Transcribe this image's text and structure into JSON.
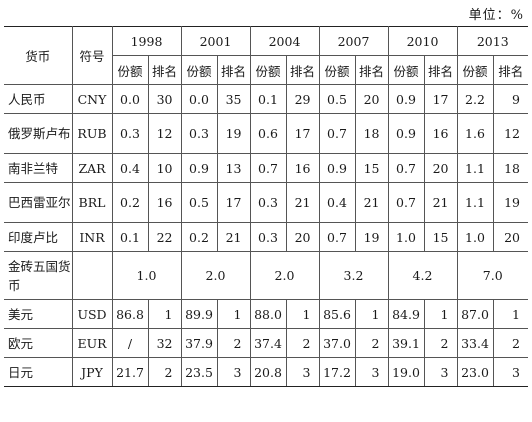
{
  "unit_label": "单位：%",
  "headers": {
    "currency": "货币",
    "code": "符号",
    "years": [
      "1998",
      "2001",
      "2004",
      "2007",
      "2010",
      "2013"
    ],
    "share": "份额",
    "rank": "排名"
  },
  "rows": [
    {
      "name": "人民币",
      "code": "CNY",
      "values": [
        [
          "0.0",
          "30"
        ],
        [
          "0.0",
          "35"
        ],
        [
          "0.1",
          "29"
        ],
        [
          "0.5",
          "20"
        ],
        [
          "0.9",
          "17"
        ],
        [
          "2.2",
          "9"
        ]
      ]
    },
    {
      "name": "俄罗斯卢布",
      "code": "RUB",
      "values": [
        [
          "0.3",
          "12"
        ],
        [
          "0.3",
          "19"
        ],
        [
          "0.6",
          "17"
        ],
        [
          "0.7",
          "18"
        ],
        [
          "0.9",
          "16"
        ],
        [
          "1.6",
          "12"
        ]
      ]
    },
    {
      "name": "南非兰特",
      "code": "ZAR",
      "values": [
        [
          "0.4",
          "10"
        ],
        [
          "0.9",
          "13"
        ],
        [
          "0.7",
          "16"
        ],
        [
          "0.9",
          "15"
        ],
        [
          "0.7",
          "20"
        ],
        [
          "1.1",
          "18"
        ]
      ]
    },
    {
      "name": "巴西雷亚尔",
      "code": "BRL",
      "values": [
        [
          "0.2",
          "16"
        ],
        [
          "0.5",
          "17"
        ],
        [
          "0.3",
          "21"
        ],
        [
          "0.4",
          "21"
        ],
        [
          "0.7",
          "21"
        ],
        [
          "1.1",
          "19"
        ]
      ]
    },
    {
      "name": "印度卢比",
      "code": "INR",
      "values": [
        [
          "0.1",
          "22"
        ],
        [
          "0.2",
          "21"
        ],
        [
          "0.3",
          "20"
        ],
        [
          "0.7",
          "19"
        ],
        [
          "1.0",
          "15"
        ],
        [
          "1.0",
          "20"
        ]
      ]
    },
    {
      "name": "金砖五国货币",
      "code": "",
      "totals": [
        "1.0",
        "2.0",
        "2.0",
        "3.2",
        "4.2",
        "7.0"
      ]
    },
    {
      "name": "美元",
      "code": "USD",
      "values": [
        [
          "86.8",
          "1"
        ],
        [
          "89.9",
          "1"
        ],
        [
          "88.0",
          "1"
        ],
        [
          "85.6",
          "1"
        ],
        [
          "84.9",
          "1"
        ],
        [
          "87.0",
          "1"
        ]
      ]
    },
    {
      "name": "欧元",
      "code": "EUR",
      "values": [
        [
          "/",
          "32"
        ],
        [
          "37.9",
          "2"
        ],
        [
          "37.4",
          "2"
        ],
        [
          "37.0",
          "2"
        ],
        [
          "39.1",
          "2"
        ],
        [
          "33.4",
          "2"
        ]
      ]
    },
    {
      "name": "日元",
      "code": "JPY",
      "values": [
        [
          "21.7",
          "2"
        ],
        [
          "23.5",
          "3"
        ],
        [
          "20.8",
          "3"
        ],
        [
          "17.2",
          "3"
        ],
        [
          "19.0",
          "3"
        ],
        [
          "23.0",
          "3"
        ]
      ]
    }
  ]
}
